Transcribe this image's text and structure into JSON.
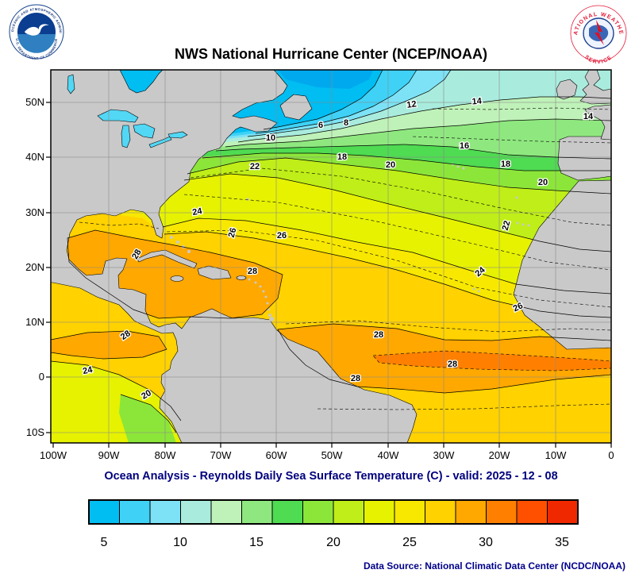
{
  "header": {
    "title": "NWS National Hurricane Center (NCEP/NOAA)",
    "noaa_logo": {
      "ring_top": "NATIONAL OCEANIC AND ATMOSPHERIC ADMINISTRATION",
      "ring_bottom": "U.S. DEPARTMENT OF COMMERCE"
    },
    "nws_logo": {
      "ring_top": "NATIONAL WEATHER",
      "ring_bottom": "SERVICE"
    }
  },
  "map": {
    "lat_labels": [
      "50N",
      "40N",
      "30N",
      "20N",
      "10N",
      "0",
      "10S"
    ],
    "lon_labels": [
      "100W",
      "90W",
      "80W",
      "70W",
      "60W",
      "50W",
      "40W",
      "30W",
      "20W",
      "10W",
      "0"
    ],
    "contour_labels": [
      "6",
      "8",
      "10",
      "12",
      "14",
      "14",
      "16",
      "18",
      "18",
      "20",
      "20",
      "22",
      "22",
      "24",
      "24",
      "26",
      "26",
      "26",
      "28",
      "28",
      "28",
      "28",
      "28",
      "28",
      "24",
      "20"
    ]
  },
  "map_colors": {
    "land": "#c9c9c9",
    "lake": "#52d7f5",
    "coldest": "#00a9ee",
    "deep_band": "#ff8000"
  },
  "caption": {
    "subtitle": "Ocean Analysis - Reynolds Daily Sea Surface Temperature (C) - valid: 2025 - 12 - 08"
  },
  "colorbar": {
    "tick_labels": [
      "5",
      "10",
      "15",
      "20",
      "25",
      "30",
      "35"
    ],
    "colors": [
      "#00bdf2",
      "#3fd2f6",
      "#7de2f5",
      "#a9ecde",
      "#bff2b8",
      "#8fe87f",
      "#4fdb52",
      "#8ce63a",
      "#bfee18",
      "#e6f200",
      "#f8e800",
      "#ffd200",
      "#ffa800",
      "#ff8000",
      "#ff5000",
      "#ef2800"
    ]
  },
  "footer": {
    "source": "Data Source: National Climatic Data Center (NCDC/NOAA)"
  },
  "chart_data": {
    "type": "filled_contour_map",
    "variable": "Reynolds Daily Sea Surface Temperature",
    "units": "C",
    "valid_date": "2025 - 12 - 08",
    "lon_axis": [
      "100W",
      "90W",
      "80W",
      "70W",
      "60W",
      "50W",
      "40W",
      "30W",
      "20W",
      "10W",
      "0"
    ],
    "lat_axis": [
      "50N",
      "40N",
      "30N",
      "20N",
      "10N",
      "0",
      "10S"
    ],
    "labeled_isotherms_c": [
      6,
      8,
      10,
      12,
      14,
      16,
      18,
      20,
      22,
      24,
      26,
      28
    ],
    "colorbar_ticks_c": [
      5,
      10,
      15,
      20,
      25,
      30,
      35
    ],
    "colorbar_cells": 16,
    "pattern": "cold cyan water in NW Atlantic / Labrador region, green mid-latitudes, yellow subtropics, gold 26C band, orange 28C water across Caribbean and tropical Atlantic 0-10N, cooler upwelling tongue off Peru"
  }
}
